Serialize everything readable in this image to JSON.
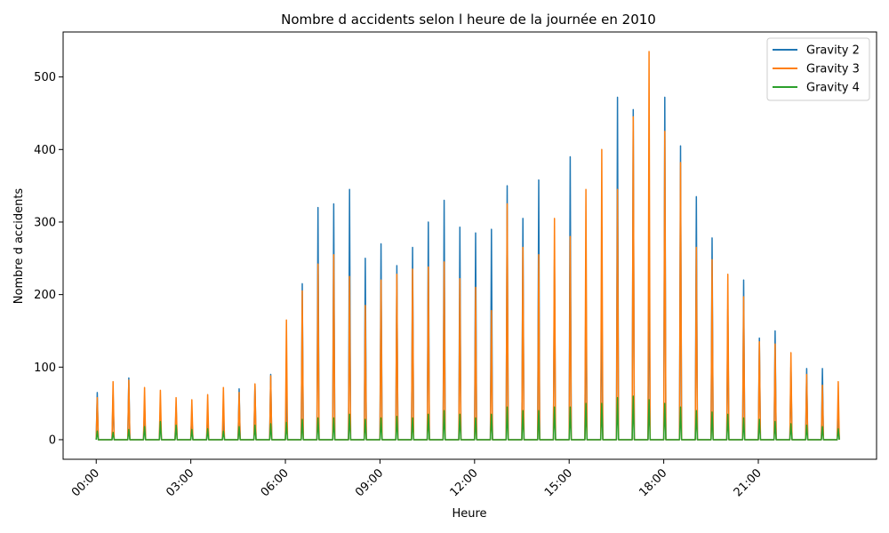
{
  "chart_data": {
    "type": "line",
    "title": "Nombre d accidents selon l heure de la journée en 2010",
    "xlabel": "Heure",
    "ylabel": "Nombre d accidents",
    "x_ticks": [
      "00:00",
      "03:00",
      "06:00",
      "09:00",
      "12:00",
      "15:00",
      "18:00",
      "21:00"
    ],
    "y_ticks": [
      0,
      100,
      200,
      300,
      400,
      500
    ],
    "xlim_hours": [
      -1.05,
      24.75
    ],
    "ylim": [
      -27,
      562
    ],
    "legend_position": "top-right",
    "grid": false,
    "x_unit": "hour of day",
    "series": [
      {
        "name": "Gravity 2",
        "color": "#1f77b4",
        "x": [
          0.0,
          0.5,
          1.0,
          1.5,
          2.0,
          2.5,
          3.0,
          3.5,
          4.0,
          4.5,
          5.0,
          5.5,
          6.0,
          6.5,
          7.0,
          7.5,
          8.0,
          8.5,
          9.0,
          9.5,
          10.0,
          10.5,
          11.0,
          11.5,
          12.0,
          12.5,
          13.0,
          13.5,
          14.0,
          14.5,
          15.0,
          15.5,
          16.0,
          16.5,
          17.0,
          17.5,
          18.0,
          18.5,
          19.0,
          19.5,
          20.0,
          20.5,
          21.0,
          21.5,
          22.0,
          22.5,
          23.0,
          23.5
        ],
        "values": [
          65,
          62,
          85,
          45,
          35,
          45,
          35,
          28,
          30,
          70,
          75,
          90,
          70,
          215,
          320,
          325,
          345,
          250,
          270,
          240,
          265,
          300,
          330,
          293,
          285,
          290,
          350,
          305,
          358,
          248,
          390,
          225,
          220,
          472,
          455,
          268,
          472,
          405,
          335,
          278,
          180,
          220,
          140,
          150,
          100,
          98,
          98,
          37
        ]
      },
      {
        "name": "Gravity 3",
        "color": "#ff7f0e",
        "x": [
          0.0,
          0.5,
          1.0,
          1.5,
          2.0,
          2.5,
          3.0,
          3.5,
          4.0,
          4.5,
          5.0,
          5.5,
          6.0,
          6.5,
          7.0,
          7.5,
          8.0,
          8.5,
          9.0,
          9.5,
          10.0,
          10.5,
          11.0,
          11.5,
          12.0,
          12.5,
          13.0,
          13.5,
          14.0,
          14.5,
          15.0,
          15.5,
          16.0,
          16.5,
          17.0,
          17.5,
          18.0,
          18.5,
          19.0,
          19.5,
          20.0,
          20.5,
          21.0,
          21.5,
          22.0,
          22.5,
          23.0,
          23.5
        ],
        "values": [
          58,
          80,
          82,
          72,
          68,
          58,
          55,
          62,
          72,
          65,
          77,
          88,
          165,
          205,
          242,
          255,
          225,
          185,
          220,
          228,
          235,
          238,
          245,
          222,
          210,
          178,
          325,
          265,
          255,
          305,
          280,
          345,
          400,
          345,
          445,
          535,
          425,
          382,
          265,
          248,
          228,
          197,
          135,
          132,
          120,
          90,
          75,
          80
        ]
      },
      {
        "name": "Gravity 4",
        "color": "#2ca02c",
        "x": [
          0.0,
          0.5,
          1.0,
          1.5,
          2.0,
          2.5,
          3.0,
          3.5,
          4.0,
          4.5,
          5.0,
          5.5,
          6.0,
          6.5,
          7.0,
          7.5,
          8.0,
          8.5,
          9.0,
          9.5,
          10.0,
          10.5,
          11.0,
          11.5,
          12.0,
          12.5,
          13.0,
          13.5,
          14.0,
          14.5,
          15.0,
          15.5,
          16.0,
          16.5,
          17.0,
          17.5,
          18.0,
          18.5,
          19.0,
          19.5,
          20.0,
          20.5,
          21.0,
          21.5,
          22.0,
          22.5,
          23.0,
          23.5
        ],
        "values": [
          12,
          10,
          14,
          18,
          25,
          20,
          14,
          15,
          12,
          18,
          20,
          22,
          24,
          28,
          30,
          30,
          35,
          28,
          30,
          32,
          30,
          35,
          40,
          35,
          30,
          35,
          45,
          40,
          40,
          45,
          45,
          50,
          50,
          58,
          60,
          55,
          50,
          45,
          40,
          38,
          35,
          30,
          28,
          25,
          22,
          20,
          18,
          15
        ]
      }
    ]
  }
}
